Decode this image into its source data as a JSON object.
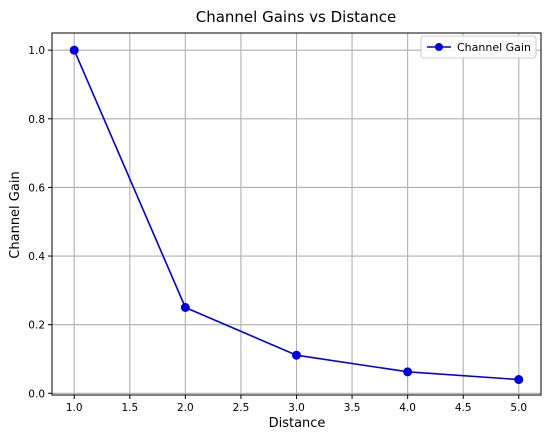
{
  "chart_data": {
    "type": "line",
    "title": "Channel Gains vs Distance",
    "xlabel": "Distance",
    "ylabel": "Channel Gain",
    "xlim": [
      0.8,
      5.2
    ],
    "ylim": [
      -0.005,
      1.05
    ],
    "xticks": [
      "1.0",
      "1.5",
      "2.0",
      "2.5",
      "3.0",
      "3.5",
      "4.0",
      "4.5",
      "5.0"
    ],
    "yticks": [
      "0.0",
      "0.2",
      "0.4",
      "0.6",
      "0.8",
      "1.0"
    ],
    "grid": true,
    "legend_position": "top-right",
    "series": [
      {
        "name": "Channel Gain",
        "color": "#0000dd",
        "marker": "circle",
        "x": [
          1.0,
          2.0,
          3.0,
          4.0,
          5.0
        ],
        "y": [
          1.0,
          0.25,
          0.111,
          0.0625,
          0.04
        ]
      }
    ]
  }
}
